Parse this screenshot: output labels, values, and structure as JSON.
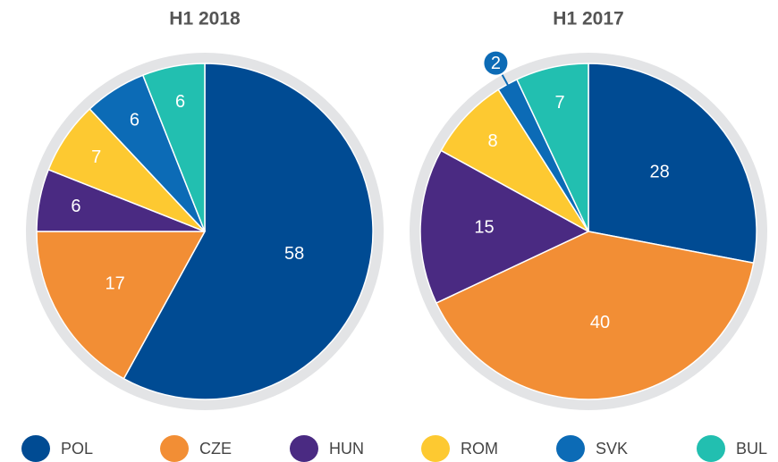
{
  "chart_data": [
    {
      "type": "pie",
      "title": "H1 2018",
      "categories": [
        "POL",
        "CZE",
        "HUN",
        "ROM",
        "SVK",
        "BUL"
      ],
      "values": [
        58,
        17,
        6,
        7,
        6,
        6
      ],
      "colors": [
        "#004b93",
        "#f28e35",
        "#4a2a82",
        "#fdc931",
        "#0c6bb6",
        "#22bfb0"
      ]
    },
    {
      "type": "pie",
      "title": "H1 2017",
      "categories": [
        "POL",
        "CZE",
        "HUN",
        "ROM",
        "SVK",
        "BUL"
      ],
      "values": [
        28,
        40,
        15,
        8,
        2,
        7
      ],
      "colors": [
        "#004b93",
        "#f28e35",
        "#4a2a82",
        "#fdc931",
        "#0c6bb6",
        "#22bfb0"
      ]
    }
  ]
}
